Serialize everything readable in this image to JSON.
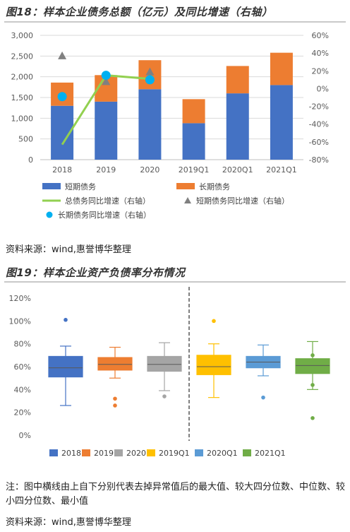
{
  "figure18": {
    "title": "图18：样本企业债务总额（亿元）及同比增速（右轴）"
  },
  "figure19": {
    "title": "图19：样本企业资产负债率分布情况"
  },
  "source1": "资料来源：wind,惠誉博华整理",
  "source2": "资料来源：wind,惠誉博华整理",
  "note": "注：图中横线由上自下分别代表去掉异常值后的最大值、较大四分位数、中位数、较小四分位数、最小值",
  "colors": {
    "short": "#4472c4",
    "long": "#ed7d31",
    "total_growth": "#92d050",
    "short_growth": "#808080",
    "long_growth": "#00b0f0",
    "b2018": "#4472c4",
    "b2019": "#ed7d31",
    "b2020": "#a5a5a5",
    "b2019Q1": "#ffc000",
    "b2020Q1": "#5b9bd5",
    "b2021Q1": "#70ad47"
  },
  "chart_data": [
    {
      "type": "bar",
      "stacked": true,
      "categories": [
        "2018",
        "2019",
        "2020",
        "2019Q1",
        "2020Q1",
        "2021Q1"
      ],
      "series": [
        {
          "name": "短期债务",
          "values": [
            1300,
            1400,
            1700,
            880,
            1600,
            1800
          ],
          "axis": "left"
        },
        {
          "name": "长期债务",
          "values": [
            560,
            640,
            700,
            580,
            660,
            780
          ],
          "axis": "left"
        },
        {
          "name": "总债务同比增速（右轴）",
          "type": "line",
          "axis": "right",
          "values": [
            -63,
            15,
            11,
            null,
            null,
            null
          ]
        },
        {
          "name": "短期债务同比增速（右轴）",
          "type": "scatter",
          "marker": "triangle",
          "axis": "right",
          "values": [
            37,
            8,
            19,
            null,
            null,
            null
          ]
        },
        {
          "name": "长期债务同比增速（右轴）",
          "type": "scatter",
          "marker": "circle",
          "axis": "right",
          "values": [
            -9,
            15,
            10,
            null,
            null,
            null
          ]
        }
      ],
      "yticks_left": [
        "0",
        "500",
        "1,000",
        "1,500",
        "2,000",
        "2,500",
        "3,000"
      ],
      "yticks_right": [
        "-80%",
        "-60%",
        "-40%",
        "-20%",
        "0%",
        "20%",
        "40%",
        "60%"
      ],
      "ylim_left": [
        0,
        3000
      ],
      "ylim_right": [
        -80,
        60
      ],
      "legend": "bottom"
    },
    {
      "type": "box",
      "categories": [
        "2018",
        "2019",
        "2020",
        "2019Q1",
        "2020Q1",
        "2021Q1"
      ],
      "boxes": [
        {
          "name": "2018",
          "min": 26,
          "q1": 51,
          "median": 59,
          "q3": 69,
          "max": 78,
          "outliers": [
            101
          ]
        },
        {
          "name": "2019",
          "min": 50,
          "q1": 57,
          "median": 62,
          "q3": 68,
          "max": 77,
          "outliers": [
            32,
            26
          ]
        },
        {
          "name": "2020",
          "min": 39,
          "q1": 56,
          "median": 62,
          "q3": 69,
          "max": 81,
          "outliers": [
            34
          ]
        },
        {
          "name": "2019Q1",
          "min": 33,
          "q1": 53,
          "median": 60,
          "q3": 70,
          "max": 80,
          "outliers": [
            100
          ]
        },
        {
          "name": "2020Q1",
          "min": 52,
          "q1": 59,
          "median": 64,
          "q3": 69,
          "max": 79,
          "outliers": [
            33
          ]
        },
        {
          "name": "2021Q1",
          "min": 40,
          "q1": 54,
          "median": 61,
          "q3": 67,
          "max": 82,
          "outliers": [
            70,
            44,
            15
          ]
        }
      ],
      "yticks": [
        "0%",
        "20%",
        "40%",
        "60%",
        "80%",
        "100%",
        "120%"
      ],
      "ylim": [
        0,
        120
      ],
      "legend": "bottom"
    }
  ]
}
